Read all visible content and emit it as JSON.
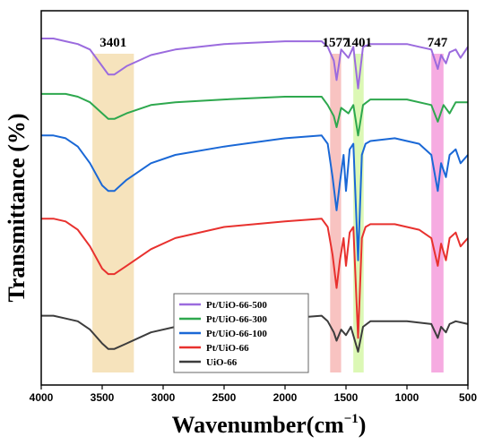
{
  "chart_data": {
    "type": "line",
    "title": "",
    "xlabel": "Wavenumber(cm",
    "xlabel_sup": "−1",
    "xlabel_close": ")",
    "ylabel": "Transmittance (%)",
    "xlim": [
      4000,
      500
    ],
    "x_reversed": true,
    "xticks": [
      4000,
      3500,
      3000,
      2500,
      2000,
      1500,
      1000,
      500
    ],
    "y_ticks_shown": false,
    "grid": false,
    "legend_position": "bottom-center",
    "bands": [
      {
        "label": "3401",
        "x_range": [
          3580,
          3240
        ],
        "color": "#f5deb0"
      },
      {
        "label": "1577",
        "x_range": [
          1630,
          1540
        ],
        "color": "#f7b9b6"
      },
      {
        "label": "1401",
        "x_range": [
          1440,
          1355
        ],
        "color": "#d6f7a8"
      },
      {
        "label": "747",
        "x_range": [
          800,
          700
        ],
        "color": "#f49cdc"
      }
    ],
    "y_scale_note": "relative transmittance, stacked offsets",
    "series": [
      {
        "name": "Pt/UiO-66-500",
        "color": "#9b6bde",
        "points": [
          [
            4000,
            100
          ],
          [
            3900,
            100
          ],
          [
            3800,
            99
          ],
          [
            3700,
            98
          ],
          [
            3600,
            96
          ],
          [
            3500,
            90
          ],
          [
            3450,
            87
          ],
          [
            3400,
            87
          ],
          [
            3300,
            90
          ],
          [
            3100,
            94
          ],
          [
            2900,
            96
          ],
          [
            2500,
            98
          ],
          [
            2000,
            99
          ],
          [
            1700,
            99
          ],
          [
            1650,
            97
          ],
          [
            1600,
            92
          ],
          [
            1577,
            85
          ],
          [
            1540,
            96
          ],
          [
            1480,
            93
          ],
          [
            1440,
            97
          ],
          [
            1401,
            82
          ],
          [
            1360,
            97
          ],
          [
            1300,
            98
          ],
          [
            1100,
            98
          ],
          [
            1000,
            98
          ],
          [
            900,
            97
          ],
          [
            800,
            96
          ],
          [
            747,
            89
          ],
          [
            720,
            94
          ],
          [
            680,
            91
          ],
          [
            650,
            95
          ],
          [
            600,
            96
          ],
          [
            560,
            93
          ],
          [
            500,
            97
          ]
        ]
      },
      {
        "name": "Pt/UiO-66-300",
        "color": "#2ea84e",
        "points": [
          [
            4000,
            80
          ],
          [
            3800,
            80
          ],
          [
            3700,
            79
          ],
          [
            3600,
            77
          ],
          [
            3500,
            73
          ],
          [
            3450,
            71
          ],
          [
            3400,
            71
          ],
          [
            3300,
            73
          ],
          [
            3100,
            76
          ],
          [
            2900,
            77
          ],
          [
            2500,
            78
          ],
          [
            2000,
            79
          ],
          [
            1700,
            79
          ],
          [
            1650,
            76
          ],
          [
            1600,
            72
          ],
          [
            1577,
            68
          ],
          [
            1540,
            75
          ],
          [
            1480,
            73
          ],
          [
            1440,
            76
          ],
          [
            1401,
            65
          ],
          [
            1360,
            76
          ],
          [
            1300,
            78
          ],
          [
            1000,
            78
          ],
          [
            800,
            76
          ],
          [
            747,
            70
          ],
          [
            700,
            76
          ],
          [
            650,
            73
          ],
          [
            600,
            77
          ],
          [
            500,
            77
          ]
        ]
      },
      {
        "name": "Pt/UiO-66-100",
        "color": "#1a68d6",
        "points": [
          [
            4000,
            65
          ],
          [
            3900,
            65
          ],
          [
            3800,
            64
          ],
          [
            3700,
            61
          ],
          [
            3600,
            55
          ],
          [
            3500,
            47
          ],
          [
            3450,
            45
          ],
          [
            3400,
            45
          ],
          [
            3300,
            49
          ],
          [
            3100,
            55
          ],
          [
            2900,
            58
          ],
          [
            2500,
            61
          ],
          [
            2000,
            64
          ],
          [
            1700,
            65
          ],
          [
            1650,
            62
          ],
          [
            1610,
            50
          ],
          [
            1577,
            38
          ],
          [
            1550,
            48
          ],
          [
            1520,
            58
          ],
          [
            1500,
            45
          ],
          [
            1470,
            60
          ],
          [
            1440,
            62
          ],
          [
            1401,
            20
          ],
          [
            1370,
            58
          ],
          [
            1340,
            62
          ],
          [
            1300,
            63
          ],
          [
            1100,
            64
          ],
          [
            1000,
            63
          ],
          [
            900,
            62
          ],
          [
            800,
            58
          ],
          [
            747,
            45
          ],
          [
            720,
            55
          ],
          [
            680,
            50
          ],
          [
            650,
            58
          ],
          [
            600,
            60
          ],
          [
            560,
            55
          ],
          [
            500,
            58
          ]
        ]
      },
      {
        "name": "Pt/UiO-66",
        "color": "#e8312e",
        "points": [
          [
            4000,
            35
          ],
          [
            3900,
            35
          ],
          [
            3800,
            34
          ],
          [
            3700,
            31
          ],
          [
            3600,
            25
          ],
          [
            3500,
            17
          ],
          [
            3450,
            15
          ],
          [
            3400,
            15
          ],
          [
            3300,
            18
          ],
          [
            3100,
            24
          ],
          [
            2900,
            28
          ],
          [
            2500,
            32
          ],
          [
            2000,
            34
          ],
          [
            1700,
            35
          ],
          [
            1650,
            32
          ],
          [
            1610,
            22
          ],
          [
            1577,
            10
          ],
          [
            1550,
            20
          ],
          [
            1520,
            28
          ],
          [
            1500,
            18
          ],
          [
            1470,
            30
          ],
          [
            1440,
            32
          ],
          [
            1401,
            -8
          ],
          [
            1370,
            28
          ],
          [
            1340,
            32
          ],
          [
            1300,
            33
          ],
          [
            1100,
            33
          ],
          [
            1000,
            32
          ],
          [
            900,
            31
          ],
          [
            800,
            28
          ],
          [
            747,
            18
          ],
          [
            720,
            26
          ],
          [
            680,
            20
          ],
          [
            650,
            28
          ],
          [
            600,
            30
          ],
          [
            560,
            25
          ],
          [
            500,
            28
          ]
        ]
      },
      {
        "name": "UiO-66",
        "color": "#3d3d3d",
        "points": [
          [
            4000,
            0
          ],
          [
            3900,
            0
          ],
          [
            3800,
            -1
          ],
          [
            3700,
            -2
          ],
          [
            3600,
            -5
          ],
          [
            3500,
            -10
          ],
          [
            3450,
            -12
          ],
          [
            3400,
            -12
          ],
          [
            3300,
            -10
          ],
          [
            3100,
            -6
          ],
          [
            2900,
            -4
          ],
          [
            2500,
            -2
          ],
          [
            2000,
            -1
          ],
          [
            1700,
            0
          ],
          [
            1650,
            -2
          ],
          [
            1600,
            -6
          ],
          [
            1577,
            -9
          ],
          [
            1540,
            -5
          ],
          [
            1500,
            -7
          ],
          [
            1460,
            -4
          ],
          [
            1401,
            -13
          ],
          [
            1360,
            -4
          ],
          [
            1300,
            -2
          ],
          [
            1000,
            -2
          ],
          [
            800,
            -3
          ],
          [
            747,
            -8
          ],
          [
            720,
            -4
          ],
          [
            680,
            -6
          ],
          [
            650,
            -3
          ],
          [
            600,
            -2
          ],
          [
            500,
            -3
          ]
        ]
      }
    ]
  }
}
